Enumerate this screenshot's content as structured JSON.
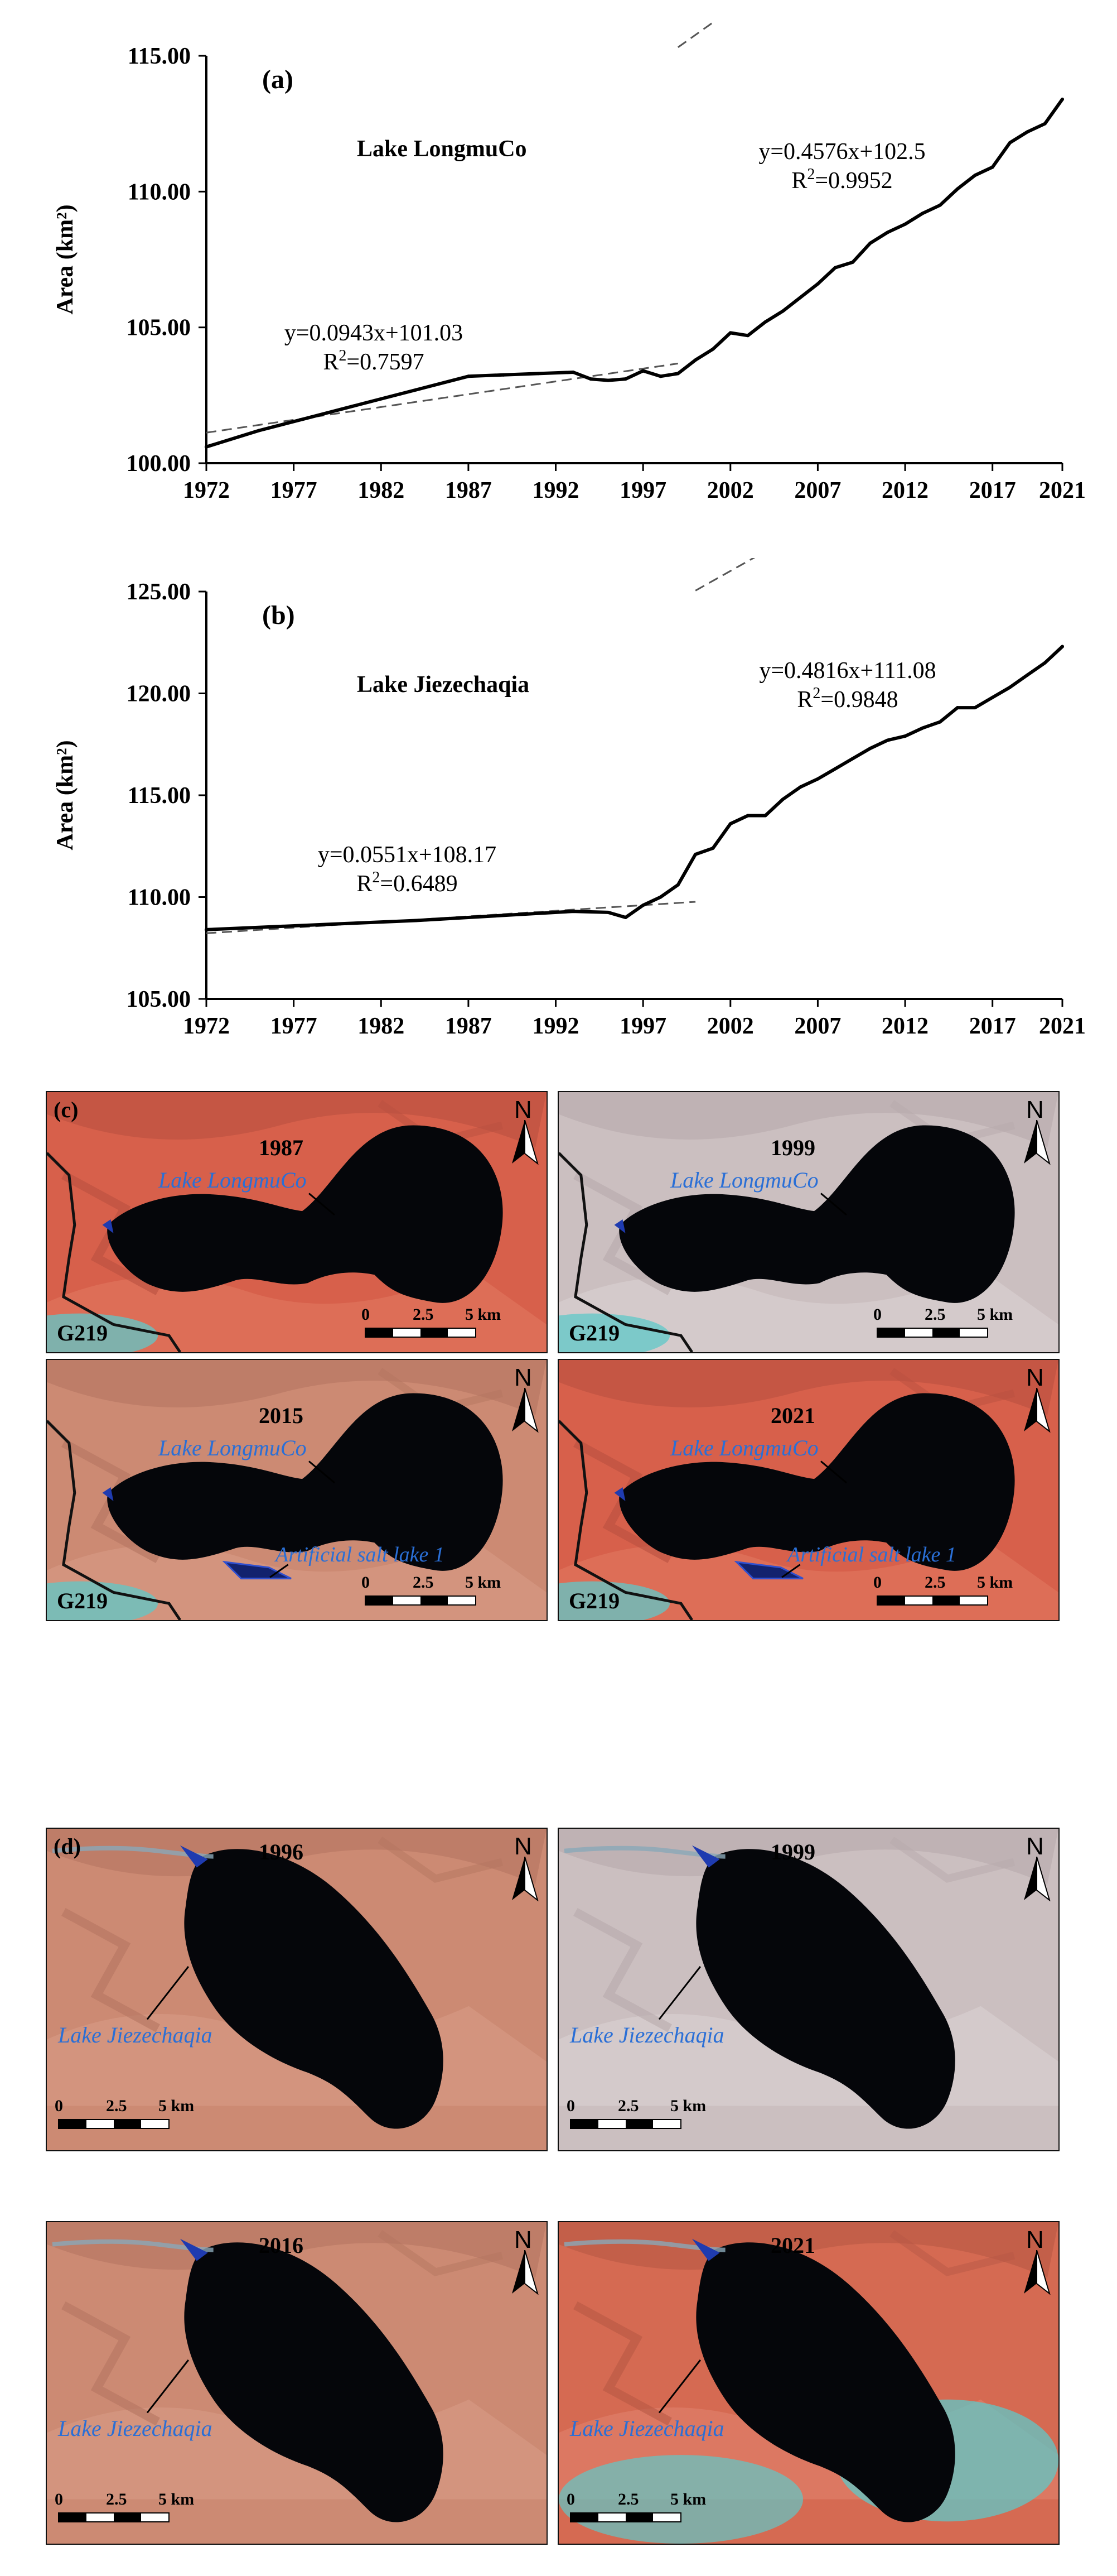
{
  "chart_data": [
    {
      "type": "line",
      "panel_label": "(a)",
      "title": "Lake LongmuCo",
      "ylabel": "Area (km²)",
      "xlabel": "",
      "ylim": [
        100,
        115
      ],
      "xlim": [
        1972,
        2021
      ],
      "yticks": [
        "100.00",
        "105.00",
        "110.00",
        "115.00"
      ],
      "xticks": [
        "1972",
        "1977",
        "1982",
        "1987",
        "1992",
        "1997",
        "2002",
        "2007",
        "2012",
        "2017",
        "2021"
      ],
      "grid": false,
      "series": [
        {
          "x": [
            1972,
            1975,
            1978,
            1981,
            1984,
            1987,
            1989,
            1991,
            1993,
            1994,
            1995,
            1996,
            1997,
            1998,
            1999,
            2000,
            2001,
            2002,
            2003,
            2004,
            2005,
            2006,
            2007,
            2008,
            2009,
            2010,
            2011,
            2012,
            2013,
            2014,
            2015,
            2016,
            2017,
            2018,
            2019,
            2020,
            2021
          ],
          "y": [
            100.6,
            101.2,
            101.7,
            102.2,
            102.7,
            103.2,
            103.25,
            103.3,
            103.35,
            103.1,
            103.05,
            103.1,
            103.4,
            103.2,
            103.3,
            103.8,
            104.2,
            104.8,
            104.7,
            105.2,
            105.6,
            106.1,
            106.6,
            107.2,
            107.4,
            108.1,
            108.5,
            108.8,
            109.2,
            109.5,
            110.1,
            110.6,
            110.9,
            111.8,
            112.2,
            112.5,
            113.4
          ]
        }
      ],
      "trendlines": [
        {
          "equation": "y=0.0943x+101.03",
          "r2_label": "R",
          "r2_sup": "2",
          "r2_value": "=0.7597",
          "x_range": [
            1972,
            1999
          ],
          "slope": 0.0943,
          "intercept": 101.03
        },
        {
          "equation": "y=0.4576x+102.5",
          "r2_label": "R",
          "r2_sup": "2",
          "r2_value": "=0.9952",
          "x_range": [
            1999,
            2021
          ],
          "slope": 0.4576,
          "intercept": 102.5
        }
      ]
    },
    {
      "type": "line",
      "panel_label": "(b)",
      "title": "Lake Jiezechaqia",
      "ylabel": "Area (km²)",
      "xlabel": "",
      "ylim": [
        105,
        125
      ],
      "xlim": [
        1972,
        2021
      ],
      "yticks": [
        "105.00",
        "110.00",
        "115.00",
        "120.00",
        "125.00"
      ],
      "xticks": [
        "1972",
        "1977",
        "1982",
        "1987",
        "1992",
        "1997",
        "2002",
        "2007",
        "2012",
        "2017",
        "2021"
      ],
      "grid": false,
      "series": [
        {
          "x": [
            1972,
            1976,
            1980,
            1984,
            1987,
            1990,
            1993,
            1995,
            1996,
            1997,
            1998,
            1999,
            2000,
            2001,
            2002,
            2003,
            2004,
            2005,
            2006,
            2007,
            2008,
            2009,
            2010,
            2011,
            2012,
            2013,
            2014,
            2015,
            2016,
            2017,
            2018,
            2019,
            2020,
            2021
          ],
          "y": [
            108.4,
            108.55,
            108.7,
            108.85,
            109.0,
            109.15,
            109.3,
            109.25,
            109.0,
            109.6,
            110.0,
            110.6,
            112.1,
            112.4,
            113.6,
            114.0,
            114.0,
            114.8,
            115.4,
            115.8,
            116.3,
            116.8,
            117.3,
            117.7,
            117.9,
            118.3,
            118.6,
            119.3,
            119.3,
            119.8,
            120.3,
            120.9,
            121.5,
            122.3
          ]
        }
      ],
      "trendlines": [
        {
          "equation": "y=0.0551x+108.17",
          "r2_label": "R",
          "r2_sup": "2",
          "r2_value": "=0.6489",
          "x_range": [
            1972,
            2000
          ],
          "slope": 0.0551,
          "intercept": 108.17
        },
        {
          "equation": "y=0.4816x+111.08",
          "r2_label": "R",
          "r2_sup": "2",
          "r2_value": "=0.9848",
          "x_range": [
            2000,
            2021
          ],
          "slope": 0.4816,
          "intercept": 111.08
        }
      ]
    }
  ],
  "maps": {
    "c": {
      "panel_label": "(c)",
      "lake_label": "Lake LongmuCo",
      "road_label": "G219",
      "salt_label": "Artificial salt lake 1",
      "north_label": "N",
      "scale": [
        "0",
        "2.5",
        "5 km"
      ],
      "panels": [
        {
          "year": "1987",
          "tone": "red",
          "salt": false
        },
        {
          "year": "1999",
          "tone": "pale",
          "salt": false
        },
        {
          "year": "2015",
          "tone": "salmon",
          "salt": true
        },
        {
          "year": "2021",
          "tone": "red",
          "salt": true
        }
      ]
    },
    "d": {
      "panel_label": "(d)",
      "lake_label": "Lake Jiezechaqia",
      "north_label": "N",
      "scale": [
        "0",
        "2.5",
        "5 km"
      ],
      "panels": [
        {
          "year": "1996",
          "tone": "salmon"
        },
        {
          "year": "1999",
          "tone": "pale"
        },
        {
          "year": "2016",
          "tone": "salmon"
        },
        {
          "year": "2021",
          "tone": "red-cyan"
        }
      ]
    }
  },
  "colors": {
    "line": "#000000",
    "trend": "#555555",
    "lake": "#05060a",
    "label_blue": "#2a6fd6",
    "terrain_red": "#d9604a",
    "terrain_pale": "#cfc4c4",
    "terrain_salmon": "#cf8a72",
    "cyan": "#5fc8c8"
  }
}
